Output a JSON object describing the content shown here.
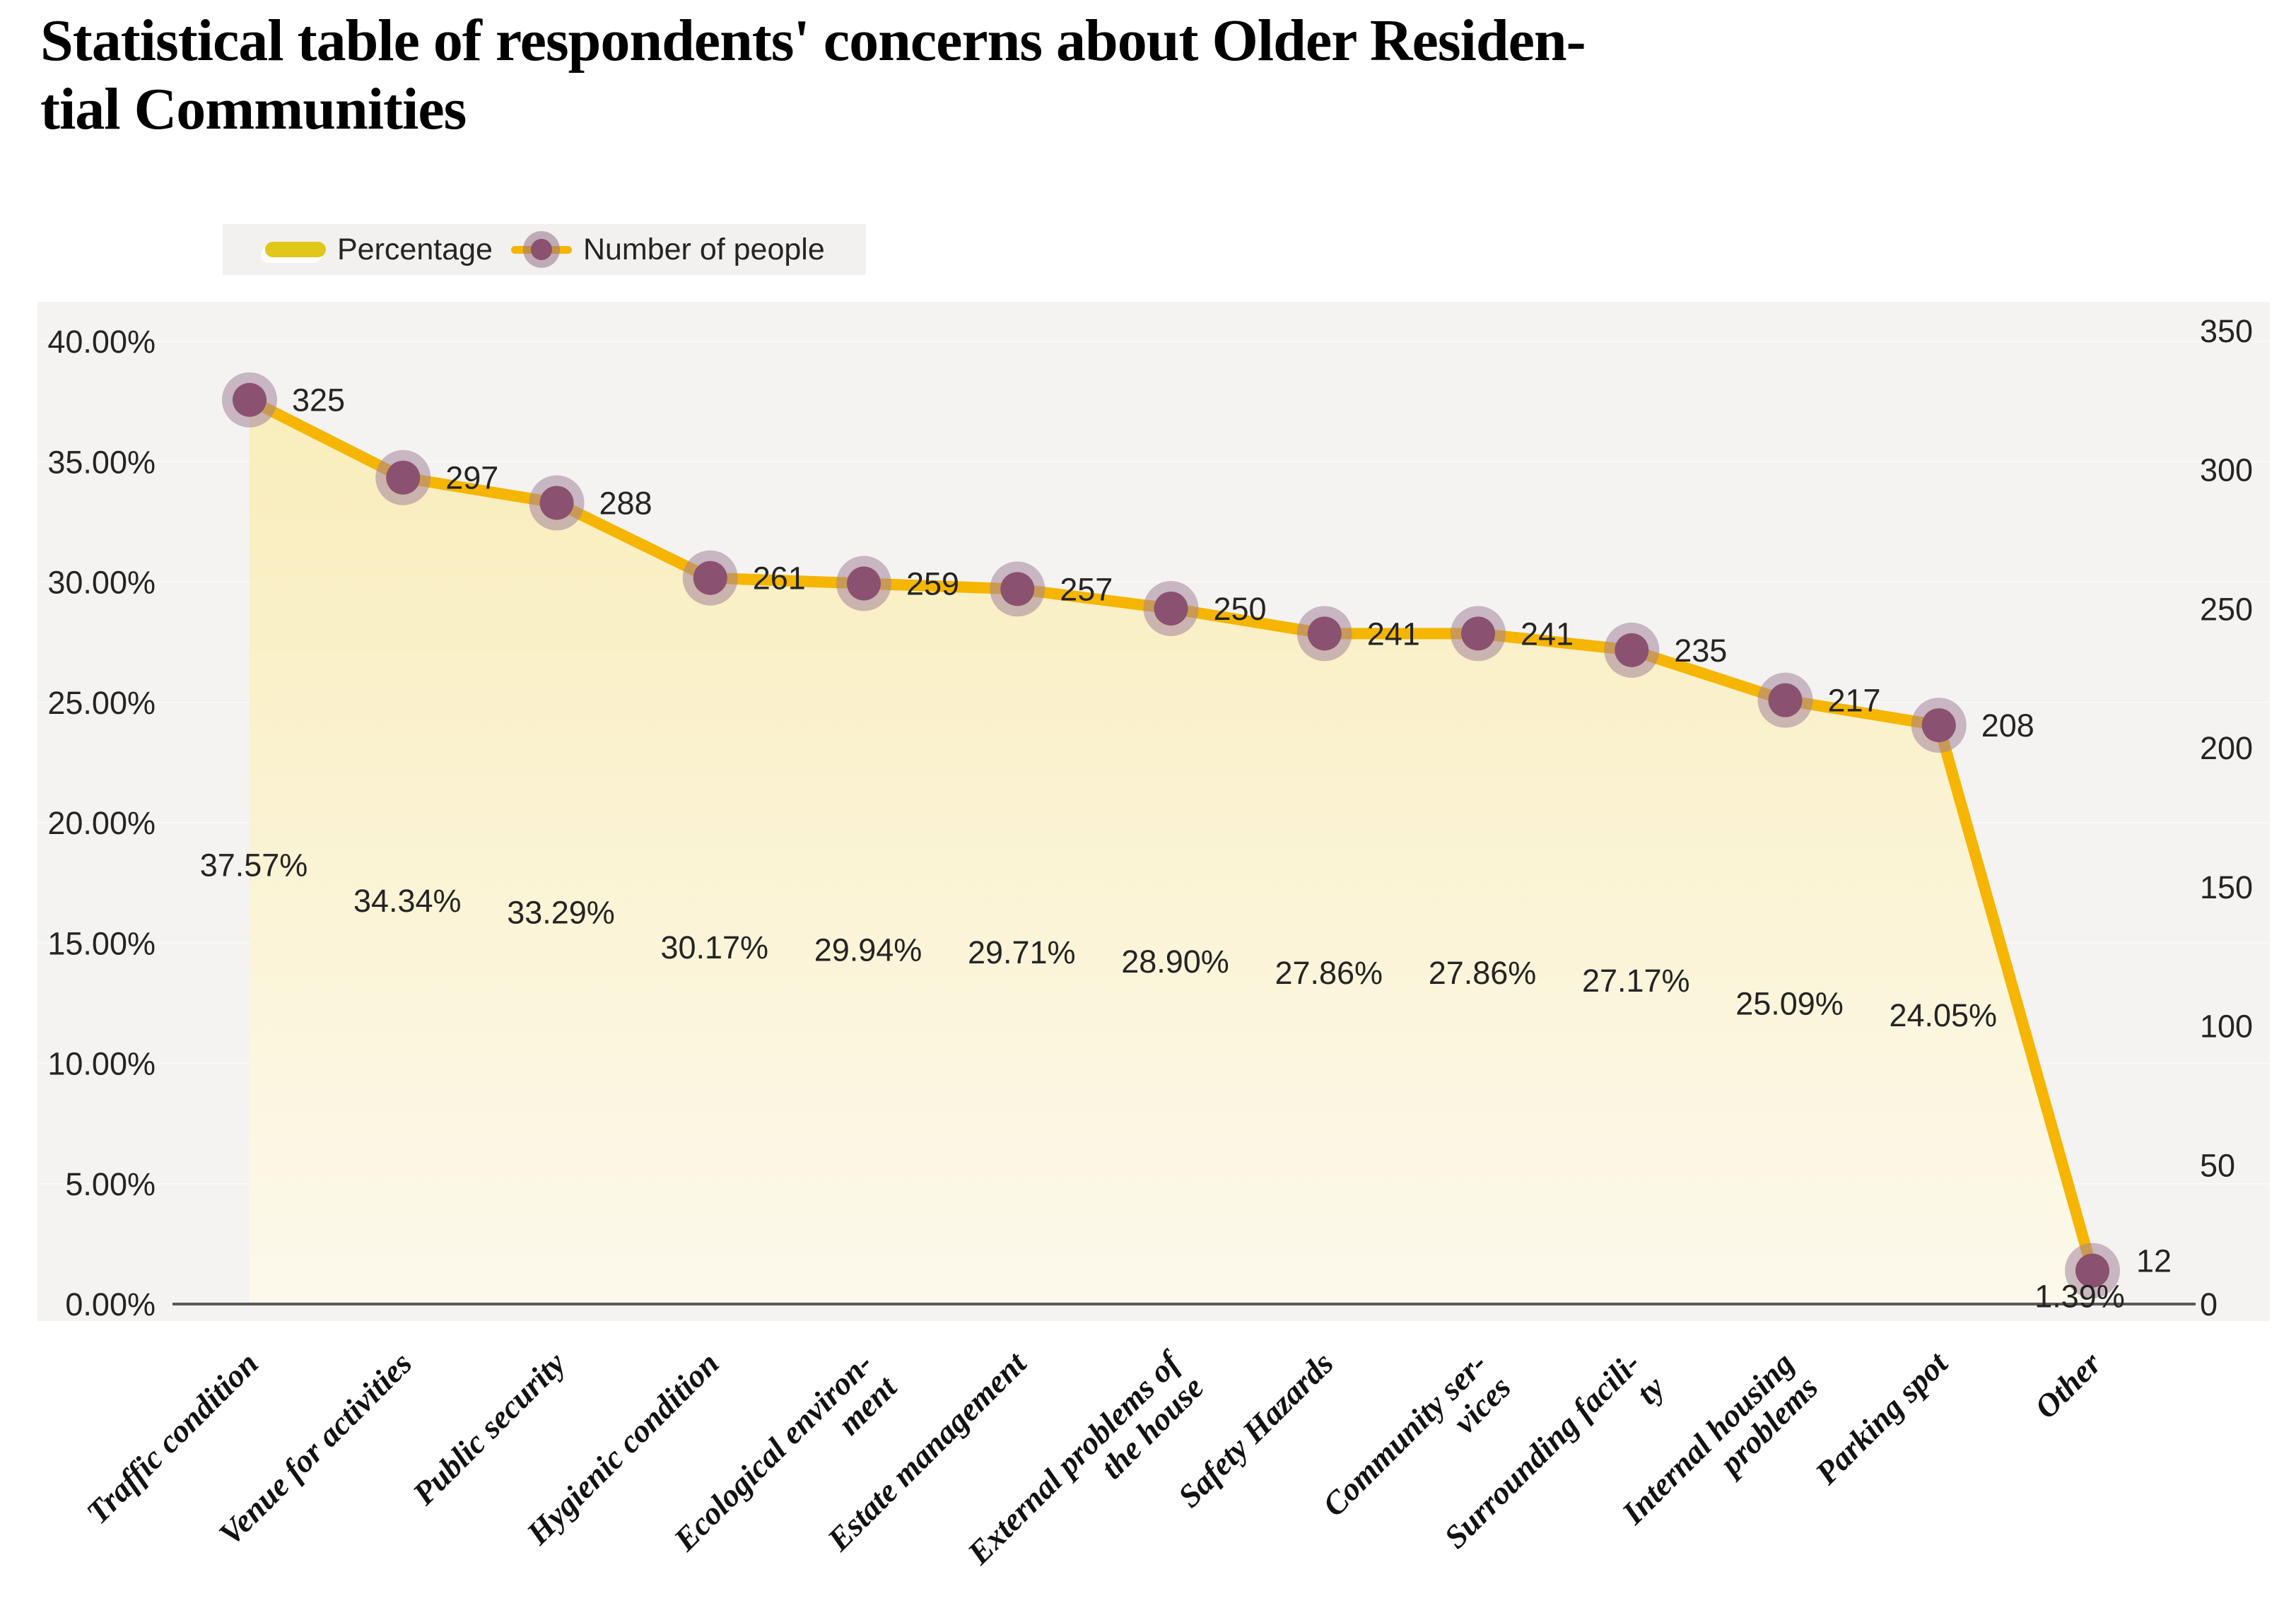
{
  "title": {
    "line1": "Statistical table of respondents' concerns about Older Residen-",
    "line2": "tial Communities",
    "full": "Statistical table of respondents' concerns about Older Residential Communities"
  },
  "legend": {
    "percentage": "Percentage",
    "number_of_people": "Number of people"
  },
  "chart_data": {
    "type": "area",
    "title": "Statistical table of respondents' concerns about Older Residential Communities",
    "legend_position": "top",
    "grid": false,
    "categories": [
      "Traffic condition",
      "Venue for activities",
      "Public security",
      "Hygienic condition",
      "Ecological environment",
      "Estate management",
      "External problems of the house",
      "Safety Hazards",
      "Community services",
      "Surrounding facility",
      "Internal housing problems",
      "Parking spot",
      "Other"
    ],
    "categories_wrapped": [
      [
        "Traffic condition"
      ],
      [
        "Venue for activities"
      ],
      [
        "Public security"
      ],
      [
        "Hygienic condition"
      ],
      [
        "Ecological environ-",
        "ment"
      ],
      [
        "Estate management"
      ],
      [
        "External problems of",
        "the house"
      ],
      [
        "Safety Hazards"
      ],
      [
        "Community ser-",
        "vices"
      ],
      [
        "Surrounding facili-",
        "ty"
      ],
      [
        "Internal housing",
        "problems"
      ],
      [
        "Parking spot"
      ],
      [
        "Other"
      ]
    ],
    "series": [
      {
        "name": "Percentage",
        "axis": "left",
        "unit": "%",
        "values": [
          37.57,
          34.34,
          33.29,
          30.17,
          29.94,
          29.71,
          28.9,
          27.86,
          27.86,
          27.17,
          25.09,
          24.05,
          1.39
        ],
        "labels": [
          "37.57%",
          "34.34%",
          "33.29%",
          "30.17%",
          "29.94%",
          "29.71%",
          "28.90%",
          "27.86%",
          "27.86%",
          "27.17%",
          "25.09%",
          "24.05%",
          "1.39%"
        ]
      },
      {
        "name": "Number of people",
        "axis": "right",
        "values": [
          325,
          297,
          288,
          261,
          259,
          257,
          250,
          241,
          241,
          235,
          217,
          208,
          12
        ],
        "labels": [
          "325",
          "297",
          "288",
          "261",
          "259",
          "257",
          "250",
          "241",
          "241",
          "235",
          "217",
          "208",
          "12"
        ]
      }
    ],
    "left_axis": {
      "min": 0,
      "max": 40,
      "ticks": [
        "40.00%",
        "35.00%",
        "30.00%",
        "25.00%",
        "20.00%",
        "15.00%",
        "10.00%",
        "5.00%",
        "0.00%"
      ]
    },
    "right_axis": {
      "min": 0,
      "max": 350,
      "ticks": [
        "350",
        "300",
        "250",
        "200",
        "150",
        "100",
        "50",
        "0"
      ]
    },
    "colors": {
      "line": "#F5B500",
      "area_top": "#F9EDBB",
      "area_bottom": "#FCF9EC",
      "marker_inner": "#8B5170",
      "marker_ring": "#A4849B",
      "plot_bg": "#F4F3F1",
      "legend_bg": "#F2F1EF",
      "legend_percentage_swatch": "#DFC81A",
      "text": "#252423",
      "axis_line": "#595959"
    }
  }
}
